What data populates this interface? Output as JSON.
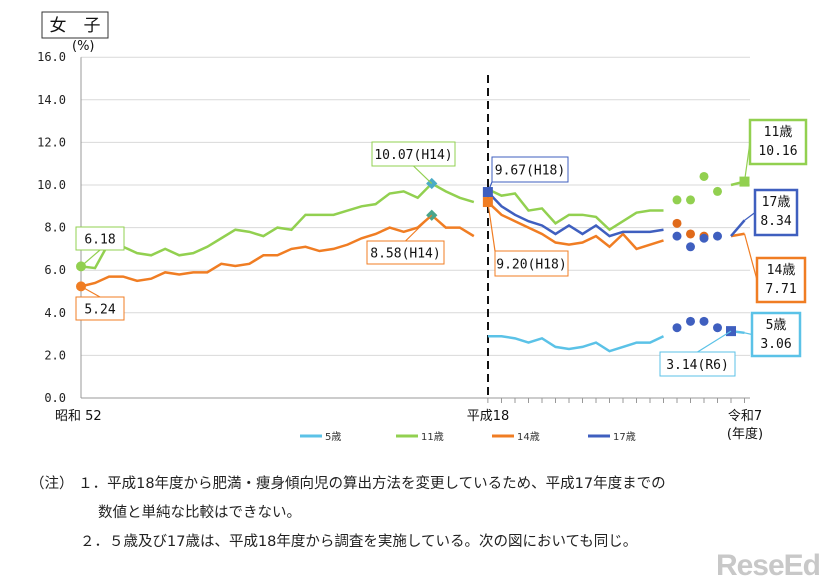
{
  "title": "女　子",
  "notes": [
    "（注） １．平成18年度から肥満・痩身傾向児の算出方法を変更しているため、平成17年度までの",
    "数値と単純な比較はできない。",
    "２．５歳及び17歳は、平成18年度から調査を実施している。次の図においても同じ。"
  ],
  "logo": "ReseEd",
  "chart_data": {
    "type": "line",
    "title": "女　子",
    "ylabel": "(%)",
    "xlabel": "(年度)",
    "ylim": [
      0,
      16
    ],
    "yticks": [
      "0.0",
      "2.0",
      "4.0",
      "6.0",
      "8.0",
      "10.0",
      "12.0",
      "14.0",
      "16.0"
    ],
    "xtick_labels": [
      {
        "year": 1977,
        "label": "昭和 52"
      },
      {
        "year": 2006,
        "label": "平成18"
      },
      {
        "year": 2025,
        "label": "令和7"
      }
    ],
    "xlim": [
      1977,
      2025
    ],
    "grid": "horizontal",
    "method_change_year": 2006,
    "legend_position": "bottom",
    "series": [
      {
        "name": "5歳",
        "color": "#5bc2e7",
        "segments": [
          {
            "start": 2006,
            "values": [
              2.9,
              2.9,
              2.8,
              2.6,
              2.8,
              2.4,
              2.3,
              2.4,
              2.6,
              2.2,
              2.4,
              2.6,
              2.6,
              2.9
            ]
          },
          {
            "start": 2024,
            "values": [
              3.14,
              3.06
            ]
          }
        ],
        "dots": {
          "start": 2020,
          "values": [
            3.3,
            3.6,
            3.6,
            3.3
          ],
          "color": "#3f5fbf"
        }
      },
      {
        "name": "11歳",
        "color": "#92d050",
        "segments": [
          {
            "start": 1977,
            "values": [
              6.18,
              6.1,
              7.3,
              7.1,
              6.8,
              6.7,
              7.0,
              6.7,
              6.8,
              7.1,
              7.5,
              7.9,
              7.8,
              7.6,
              8.0,
              7.9,
              8.6,
              8.6,
              8.6,
              8.8,
              9.0,
              9.1,
              9.6,
              9.7,
              9.4,
              10.07,
              9.7,
              9.4,
              9.2
            ]
          },
          {
            "start": 2006,
            "values": [
              9.8,
              9.5,
              9.6,
              8.8,
              8.9,
              8.2,
              8.6,
              8.6,
              8.5,
              7.9,
              8.3,
              8.7,
              8.8,
              8.8
            ]
          },
          {
            "start": 2024,
            "values": [
              10.0,
              10.16
            ]
          }
        ],
        "dots": {
          "start": 2020,
          "values": [
            9.3,
            9.3,
            10.4,
            9.7
          ],
          "color": "#92d050"
        }
      },
      {
        "name": "14歳",
        "color": "#f07d23",
        "segments": [
          {
            "start": 1977,
            "values": [
              5.24,
              5.4,
              5.7,
              5.7,
              5.5,
              5.6,
              5.9,
              5.8,
              5.9,
              5.9,
              6.3,
              6.2,
              6.3,
              6.7,
              6.7,
              7.0,
              7.1,
              6.9,
              7.0,
              7.2,
              7.5,
              7.7,
              8.0,
              7.8,
              8.0,
              8.58,
              8.0,
              8.0,
              7.6
            ]
          },
          {
            "start": 2006,
            "values": [
              9.2,
              8.6,
              8.3,
              8.0,
              7.7,
              7.3,
              7.2,
              7.3,
              7.6,
              7.1,
              7.7,
              7.0,
              7.2,
              7.4
            ]
          },
          {
            "start": 2024,
            "values": [
              7.6,
              7.71
            ]
          }
        ],
        "dots": {
          "start": 2020,
          "values": [
            8.2,
            7.7,
            7.6
          ],
          "color": "#e06a1a"
        }
      },
      {
        "name": "17歳",
        "color": "#3f5fbf",
        "segments": [
          {
            "start": 2006,
            "values": [
              9.67,
              9.0,
              8.6,
              8.3,
              8.1,
              7.7,
              8.1,
              7.7,
              8.1,
              7.6,
              7.8,
              7.8,
              7.8,
              7.9
            ]
          },
          {
            "start": 2024,
            "values": [
              7.6,
              8.34
            ]
          }
        ],
        "dots": {
          "start": 2020,
          "values": [
            7.6,
            7.1,
            7.5,
            7.6
          ],
          "color": "#3f5fbf"
        }
      }
    ],
    "annotations": [
      {
        "id": "a11start",
        "text": [
          "6.18"
        ],
        "color": "#92d050",
        "year": 1977,
        "value": 6.18
      },
      {
        "id": "a14start",
        "text": [
          "5.24"
        ],
        "color": "#f07d23",
        "year": 1977,
        "value": 5.24
      },
      {
        "id": "a11h14",
        "text": [
          "10.07(H14)"
        ],
        "color": "#92d050",
        "year": 2002,
        "value": 10.07
      },
      {
        "id": "a14h14",
        "text": [
          "8.58(H14)"
        ],
        "color": "#f07d23",
        "year": 2002,
        "value": 8.58
      },
      {
        "id": "a17h18",
        "text": [
          "9.67(H18)"
        ],
        "color": "#3f5fbf",
        "year": 2006,
        "value": 9.67
      },
      {
        "id": "a14h18",
        "text": [
          "9.20(H18)"
        ],
        "color": "#f07d23",
        "year": 2006,
        "value": 9.2
      },
      {
        "id": "a11r7",
        "text": [
          "11歳",
          "10.16"
        ],
        "color": "#92d050",
        "year": 2025,
        "value": 10.16
      },
      {
        "id": "a17r7",
        "text": [
          "17歳",
          "8.34"
        ],
        "color": "#3f5fbf",
        "year": 2025,
        "value": 8.34
      },
      {
        "id": "a14r7",
        "text": [
          "14歳",
          "7.71"
        ],
        "color": "#f07d23",
        "year": 2025,
        "value": 7.71
      },
      {
        "id": "a5r7",
        "text": [
          "5歳",
          "3.06"
        ],
        "color": "#5bc2e7",
        "year": 2025,
        "value": 3.06
      },
      {
        "id": "a5r6",
        "text": [
          "3.14(R6)"
        ],
        "color": "#5bc2e7",
        "year": 2024,
        "value": 3.14
      }
    ]
  }
}
